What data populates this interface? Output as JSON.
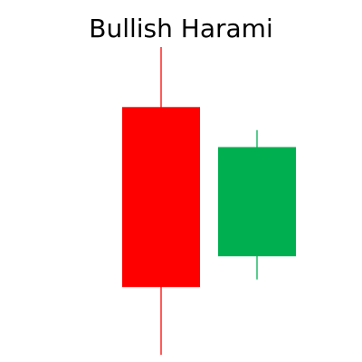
{
  "chart_data": {
    "type": "candlestick",
    "title": "Bullish Harami",
    "xlabel": "",
    "ylabel": "",
    "grid": false,
    "legend": "none",
    "candles": [
      {
        "open": 80.5,
        "high": 100.0,
        "low": 0.0,
        "close": 22.0,
        "color": "#FF0000"
      },
      {
        "open": 32.0,
        "high": 73.0,
        "low": 24.5,
        "close": 67.5,
        "color": "#00B050"
      }
    ]
  }
}
